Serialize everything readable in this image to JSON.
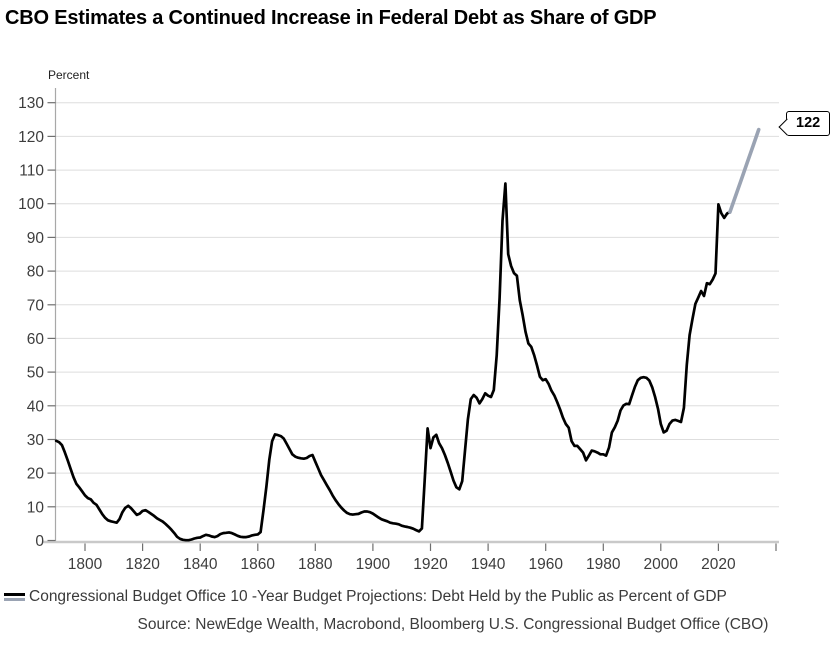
{
  "title": "CBO Estimates a Continued Increase in Federal Debt as Share of GDP",
  "callout": {
    "value": "122"
  },
  "legend": {
    "label": "Congressional Budget Office 10 -Year Budget Projections: Debt Held by the Public as Percent of GDP",
    "marker_colors": [
      "#000000",
      "#9aa3b3"
    ]
  },
  "source": "Source: NewEdge Wealth, Macrobond, Bloomberg U.S. Congressional Budget Office (CBO)",
  "colors": {
    "gridline": "#dedede",
    "axis_v": "#a8a8a8",
    "axis_h": "#c9c9c9",
    "tick": "#6f6f6f",
    "history_line": "#000000",
    "projection_line": "#9aa3b3"
  },
  "chart_data": {
    "type": "line",
    "title": "CBO Estimates a Continued Increase in Federal Debt as Share of GDP",
    "xlabel": "",
    "ylabel": "Percent",
    "ylim": [
      0,
      130
    ],
    "xlim": [
      1790,
      2040
    ],
    "grid": "horizontal",
    "legend_position": "bottom-left",
    "yticks": [
      0,
      10,
      20,
      30,
      40,
      50,
      60,
      70,
      80,
      90,
      100,
      110,
      120,
      130
    ],
    "xticks": [
      1800,
      1820,
      1840,
      1860,
      1880,
      1900,
      1920,
      1940,
      1960,
      1980,
      2000,
      2020,
      2040
    ],
    "xtick_labels": [
      1800,
      1820,
      1840,
      1860,
      1880,
      1900,
      1920,
      1940,
      1960,
      1980,
      2000,
      2020
    ],
    "end_label": {
      "value": 122,
      "year": 2034
    },
    "series": [
      {
        "name": "Debt Held by the Public as Percent of GDP (historical)",
        "color": "#000000",
        "width": 2.7,
        "points": [
          [
            1790,
            29.6
          ],
          [
            1791,
            29.2
          ],
          [
            1792,
            28.3
          ],
          [
            1793,
            26.2
          ],
          [
            1794,
            23.8
          ],
          [
            1795,
            21.3
          ],
          [
            1796,
            18.8
          ],
          [
            1797,
            16.8
          ],
          [
            1798,
            15.8
          ],
          [
            1799,
            14.6
          ],
          [
            1800,
            13.4
          ],
          [
            1801,
            12.6
          ],
          [
            1802,
            12.2
          ],
          [
            1803,
            11.2
          ],
          [
            1804,
            10.6
          ],
          [
            1805,
            9.2
          ],
          [
            1806,
            7.8
          ],
          [
            1807,
            6.7
          ],
          [
            1808,
            6.0
          ],
          [
            1809,
            5.7
          ],
          [
            1810,
            5.5
          ],
          [
            1811,
            5.3
          ],
          [
            1812,
            6.4
          ],
          [
            1813,
            8.4
          ],
          [
            1814,
            9.7
          ],
          [
            1815,
            10.3
          ],
          [
            1816,
            9.6
          ],
          [
            1817,
            8.6
          ],
          [
            1818,
            7.6
          ],
          [
            1819,
            8.0
          ],
          [
            1820,
            8.8
          ],
          [
            1821,
            9.0
          ],
          [
            1822,
            8.5
          ],
          [
            1823,
            7.9
          ],
          [
            1824,
            7.3
          ],
          [
            1825,
            6.6
          ],
          [
            1826,
            6.1
          ],
          [
            1827,
            5.6
          ],
          [
            1828,
            4.9
          ],
          [
            1829,
            4.1
          ],
          [
            1830,
            3.2
          ],
          [
            1831,
            2.2
          ],
          [
            1832,
            1.1
          ],
          [
            1833,
            0.5
          ],
          [
            1834,
            0.2
          ],
          [
            1835,
            0.1
          ],
          [
            1836,
            0.1
          ],
          [
            1837,
            0.3
          ],
          [
            1838,
            0.6
          ],
          [
            1839,
            0.8
          ],
          [
            1840,
            0.9
          ],
          [
            1841,
            1.3
          ],
          [
            1842,
            1.7
          ],
          [
            1843,
            1.5
          ],
          [
            1844,
            1.2
          ],
          [
            1845,
            1.0
          ],
          [
            1846,
            1.3
          ],
          [
            1847,
            1.9
          ],
          [
            1848,
            2.2
          ],
          [
            1849,
            2.3
          ],
          [
            1850,
            2.4
          ],
          [
            1851,
            2.2
          ],
          [
            1852,
            1.8
          ],
          [
            1853,
            1.4
          ],
          [
            1854,
            1.1
          ],
          [
            1855,
            1.0
          ],
          [
            1856,
            1.0
          ],
          [
            1857,
            1.2
          ],
          [
            1858,
            1.5
          ],
          [
            1859,
            1.7
          ],
          [
            1860,
            1.8
          ],
          [
            1861,
            2.5
          ],
          [
            1862,
            9.0
          ],
          [
            1863,
            16.0
          ],
          [
            1864,
            24.0
          ],
          [
            1865,
            29.5
          ],
          [
            1866,
            31.5
          ],
          [
            1867,
            31.3
          ],
          [
            1868,
            31.0
          ],
          [
            1869,
            30.3
          ],
          [
            1870,
            28.8
          ],
          [
            1871,
            27.2
          ],
          [
            1872,
            25.6
          ],
          [
            1873,
            24.9
          ],
          [
            1874,
            24.6
          ],
          [
            1875,
            24.4
          ],
          [
            1876,
            24.3
          ],
          [
            1877,
            24.5
          ],
          [
            1878,
            25.1
          ],
          [
            1879,
            25.4
          ],
          [
            1880,
            23.4
          ],
          [
            1881,
            21.4
          ],
          [
            1882,
            19.4
          ],
          [
            1883,
            17.9
          ],
          [
            1884,
            16.4
          ],
          [
            1885,
            15.0
          ],
          [
            1886,
            13.4
          ],
          [
            1887,
            12.0
          ],
          [
            1888,
            10.8
          ],
          [
            1889,
            9.8
          ],
          [
            1890,
            8.9
          ],
          [
            1891,
            8.2
          ],
          [
            1892,
            7.8
          ],
          [
            1893,
            7.7
          ],
          [
            1894,
            7.8
          ],
          [
            1895,
            7.9
          ],
          [
            1896,
            8.3
          ],
          [
            1897,
            8.6
          ],
          [
            1898,
            8.6
          ],
          [
            1899,
            8.4
          ],
          [
            1900,
            8.0
          ],
          [
            1901,
            7.4
          ],
          [
            1902,
            6.8
          ],
          [
            1903,
            6.3
          ],
          [
            1904,
            6.0
          ],
          [
            1905,
            5.7
          ],
          [
            1906,
            5.3
          ],
          [
            1907,
            5.1
          ],
          [
            1908,
            5.0
          ],
          [
            1909,
            4.8
          ],
          [
            1910,
            4.4
          ],
          [
            1911,
            4.2
          ],
          [
            1912,
            4.0
          ],
          [
            1913,
            3.8
          ],
          [
            1914,
            3.5
          ],
          [
            1915,
            3.1
          ],
          [
            1916,
            2.7
          ],
          [
            1917,
            3.6
          ],
          [
            1918,
            18.0
          ],
          [
            1919,
            33.3
          ],
          [
            1920,
            27.4
          ],
          [
            1921,
            30.6
          ],
          [
            1922,
            31.4
          ],
          [
            1923,
            28.9
          ],
          [
            1924,
            27.4
          ],
          [
            1925,
            25.4
          ],
          [
            1926,
            23.0
          ],
          [
            1927,
            20.4
          ],
          [
            1928,
            17.8
          ],
          [
            1929,
            15.8
          ],
          [
            1930,
            15.2
          ],
          [
            1931,
            17.6
          ],
          [
            1932,
            27.0
          ],
          [
            1933,
            36.0
          ],
          [
            1934,
            42.0
          ],
          [
            1935,
            43.2
          ],
          [
            1936,
            42.4
          ],
          [
            1937,
            40.7
          ],
          [
            1938,
            42.0
          ],
          [
            1939,
            43.7
          ],
          [
            1940,
            43.0
          ],
          [
            1941,
            42.6
          ],
          [
            1942,
            44.7
          ],
          [
            1943,
            55.0
          ],
          [
            1944,
            72.0
          ],
          [
            1945,
            95.0
          ],
          [
            1946,
            106.0
          ],
          [
            1947,
            85.0
          ],
          [
            1948,
            81.5
          ],
          [
            1949,
            79.4
          ],
          [
            1950,
            78.6
          ],
          [
            1951,
            71.3
          ],
          [
            1952,
            67.0
          ],
          [
            1953,
            62.0
          ],
          [
            1954,
            58.5
          ],
          [
            1955,
            57.5
          ],
          [
            1956,
            55.0
          ],
          [
            1957,
            52.0
          ],
          [
            1958,
            48.6
          ],
          [
            1959,
            47.6
          ],
          [
            1960,
            47.9
          ],
          [
            1961,
            46.5
          ],
          [
            1962,
            44.5
          ],
          [
            1963,
            43.1
          ],
          [
            1964,
            41.1
          ],
          [
            1965,
            38.9
          ],
          [
            1966,
            36.5
          ],
          [
            1967,
            34.6
          ],
          [
            1968,
            33.5
          ],
          [
            1969,
            29.5
          ],
          [
            1970,
            28.1
          ],
          [
            1971,
            28.1
          ],
          [
            1972,
            27.1
          ],
          [
            1973,
            26.1
          ],
          [
            1974,
            23.8
          ],
          [
            1975,
            25.2
          ],
          [
            1976,
            26.7
          ],
          [
            1977,
            26.5
          ],
          [
            1978,
            26.1
          ],
          [
            1979,
            25.6
          ],
          [
            1980,
            25.6
          ],
          [
            1981,
            25.2
          ],
          [
            1982,
            27.6
          ],
          [
            1983,
            32.1
          ],
          [
            1984,
            33.6
          ],
          [
            1985,
            35.6
          ],
          [
            1986,
            38.6
          ],
          [
            1987,
            40.1
          ],
          [
            1988,
            40.6
          ],
          [
            1989,
            40.5
          ],
          [
            1990,
            43.1
          ],
          [
            1991,
            45.6
          ],
          [
            1992,
            47.6
          ],
          [
            1993,
            48.3
          ],
          [
            1994,
            48.5
          ],
          [
            1995,
            48.3
          ],
          [
            1996,
            47.5
          ],
          [
            1997,
            45.5
          ],
          [
            1998,
            42.6
          ],
          [
            1999,
            39.1
          ],
          [
            2000,
            34.6
          ],
          [
            2001,
            32.1
          ],
          [
            2002,
            32.6
          ],
          [
            2003,
            34.6
          ],
          [
            2004,
            35.6
          ],
          [
            2005,
            35.8
          ],
          [
            2006,
            35.5
          ],
          [
            2007,
            35.2
          ],
          [
            2008,
            39.4
          ],
          [
            2009,
            52.2
          ],
          [
            2010,
            61.0
          ],
          [
            2011,
            65.8
          ],
          [
            2012,
            70.3
          ],
          [
            2013,
            72.2
          ],
          [
            2014,
            74.1
          ],
          [
            2015,
            72.6
          ],
          [
            2016,
            76.4
          ],
          [
            2017,
            76.1
          ],
          [
            2018,
            77.5
          ],
          [
            2019,
            79.3
          ],
          [
            2020,
            99.8
          ],
          [
            2021,
            97.2
          ],
          [
            2022,
            95.8
          ],
          [
            2023,
            97.1
          ],
          [
            2024,
            97.5
          ]
        ]
      },
      {
        "name": "Congressional Budget Office 10-Year Budget Projection",
        "color": "#9aa3b3",
        "width": 3.6,
        "points": [
          [
            2024,
            97.5
          ],
          [
            2026,
            102.4
          ],
          [
            2028,
            107.3
          ],
          [
            2030,
            112.2
          ],
          [
            2032,
            117.1
          ],
          [
            2034,
            122.0
          ]
        ]
      }
    ]
  }
}
